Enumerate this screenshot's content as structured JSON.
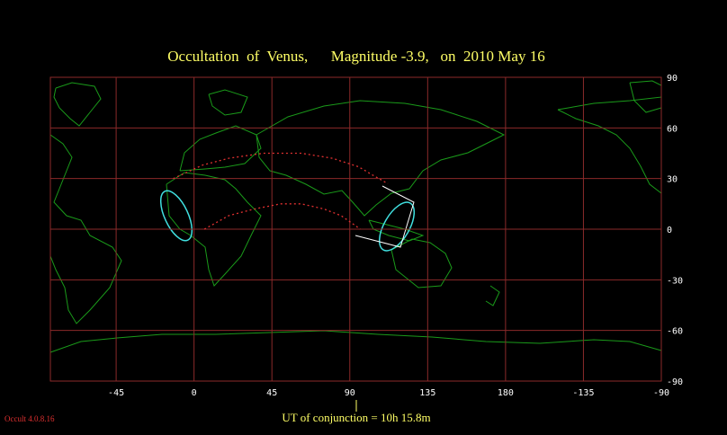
{
  "title": "Occultation  of  Venus,      Magnitude -3.9,   on  2010 May 16",
  "footer": "UT of conjunction = 10h 15.8m",
  "version": "Occult 4.0.8.16",
  "map": {
    "xlim": [
      -83,
      270
    ],
    "ylim": [
      -90,
      90
    ],
    "xticks": [
      -45,
      0,
      45,
      90,
      135,
      180,
      {
        "value": 225,
        "label": "-135"
      },
      {
        "value": 270,
        "label": "-90"
      }
    ],
    "yticks": [
      90,
      60,
      30,
      0,
      -30,
      -60,
      -90
    ],
    "grid_color": "#8b2a2a",
    "limits": [
      {
        "color": "#e03030",
        "lon": [
          -12,
          5,
          20,
          40,
          62,
          80,
          95,
          105,
          112
        ],
        "lat": [
          30,
          38,
          42,
          45,
          45,
          42,
          37,
          31,
          27
        ]
      },
      {
        "color": "#e03030",
        "lon": [
          6,
          20,
          35,
          50,
          62,
          75,
          85,
          92,
          96
        ],
        "lat": [
          0,
          8,
          12,
          15,
          15,
          12,
          8,
          3,
          0
        ]
      }
    ]
  }
}
